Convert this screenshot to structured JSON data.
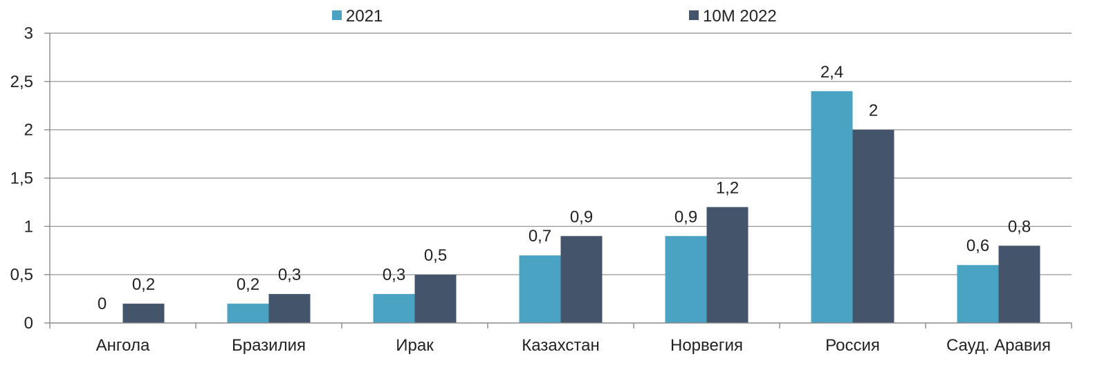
{
  "chart_data": {
    "type": "bar",
    "categories": [
      "Ангола",
      "Бразилия",
      "Ирак",
      "Казахстан",
      "Норвегия",
      "Россия",
      "Сауд. Аравия"
    ],
    "series": [
      {
        "name": "2021",
        "values": [
          0,
          0.2,
          0.3,
          0.7,
          0.9,
          2.4,
          0.6
        ],
        "labels": [
          "0",
          "0,2",
          "0,3",
          "0,7",
          "0,9",
          "2,4",
          "0,6"
        ]
      },
      {
        "name": "10M 2022",
        "values": [
          0.2,
          0.3,
          0.5,
          0.9,
          1.2,
          2,
          0.8
        ],
        "labels": [
          "0,2",
          "0,3",
          "0,5",
          "0,9",
          "1,2",
          "2",
          "0,8"
        ]
      }
    ],
    "yticks": [
      0,
      0.5,
      1,
      1.5,
      2,
      2.5,
      3
    ],
    "ytick_labels": [
      "0",
      "0,5",
      "1",
      "1,5",
      "2",
      "2,5",
      "3"
    ],
    "ylim": [
      0,
      3
    ],
    "grid": true,
    "legend": "top-center",
    "colors": [
      "#4ba3c3",
      "#44546a"
    ]
  }
}
